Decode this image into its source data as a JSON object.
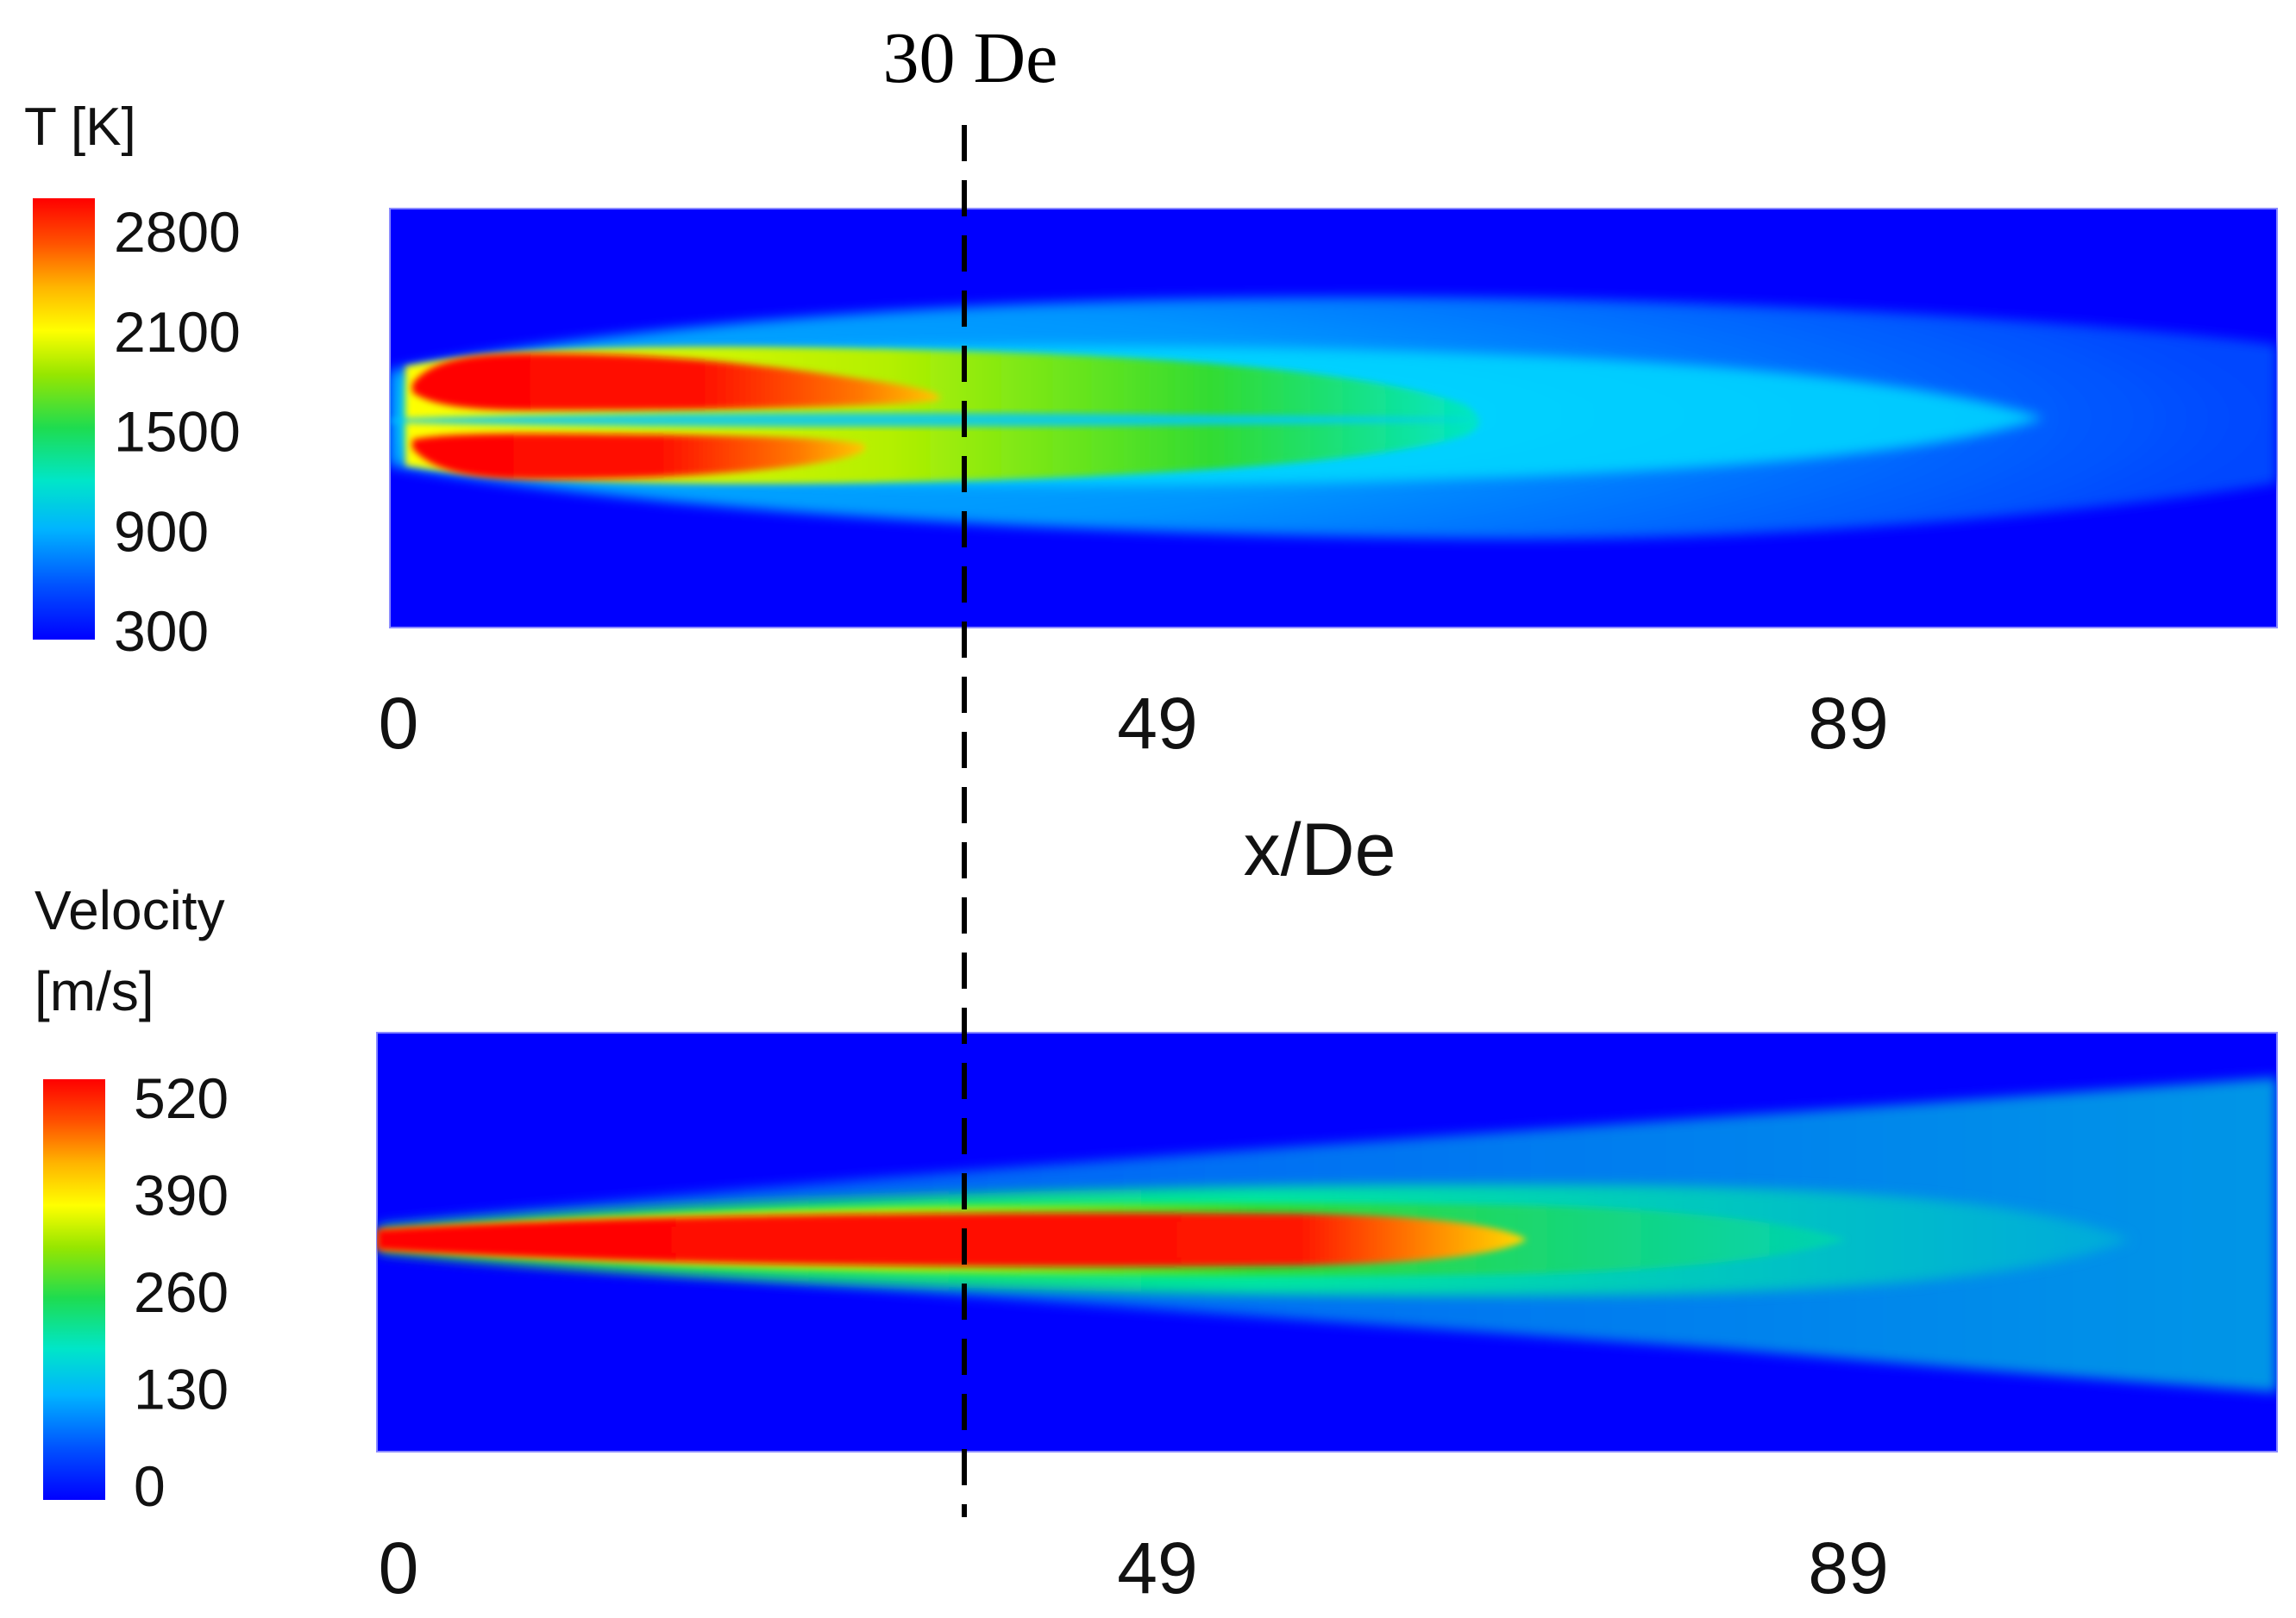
{
  "chart_data": [
    {
      "type": "heatmap",
      "title": "",
      "colorbar": {
        "label": "T [K]",
        "ticks": [
          2800,
          2100,
          1500,
          900,
          300
        ],
        "range": [
          300,
          2800
        ],
        "colormap": "rainbow"
      },
      "x_ticks": [
        "0",
        "49",
        "89"
      ],
      "xlabel": "x/De",
      "field": "temperature, twin hot lobes either side of the centre line, cooling downstream"
    },
    {
      "type": "heatmap",
      "title": "",
      "colorbar": {
        "label_line1": "Velocity",
        "label_line2": "[m/s]",
        "ticks": [
          520,
          390,
          260,
          130,
          0
        ],
        "range": [
          0,
          520
        ],
        "colormap": "rainbow"
      },
      "x_ticks": [
        "0",
        "49",
        "89"
      ],
      "xlabel": "",
      "field": "velocity, single centreline jet core, decaying downstream"
    }
  ],
  "annotation": {
    "label": "30 De",
    "x_over_De": 30
  },
  "colors": {
    "background": "#0000ff",
    "colormap_stops": [
      "#0000ff",
      "#0064ff",
      "#00c8ff",
      "#00e6a0",
      "#32dc32",
      "#b4f000",
      "#ffff00",
      "#ffa000",
      "#ff3200",
      "#ff0000"
    ]
  }
}
